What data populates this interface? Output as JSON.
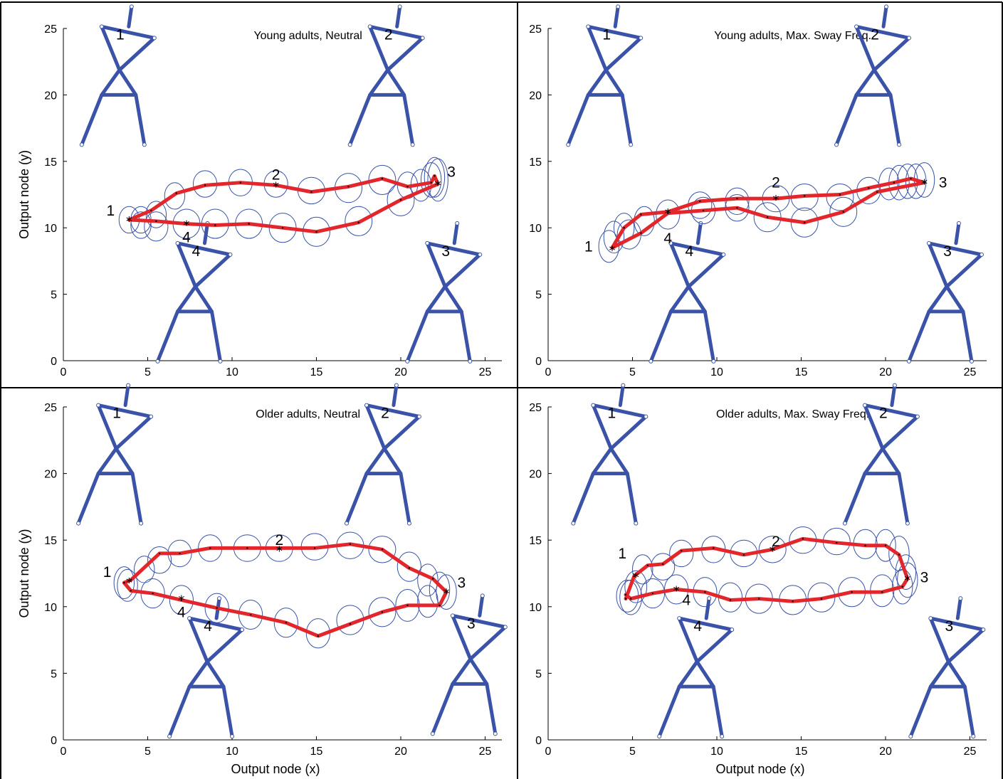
{
  "colors": {
    "trajectory": "#e3262b",
    "ellipse": "#3a52a8",
    "stick_figure": "#3a52a8"
  },
  "chart_data": [
    {
      "type": "line",
      "title": "Young adults, Neutral",
      "xlabel": "",
      "ylabel": "Output node (y)",
      "xlim": [
        0,
        26
      ],
      "ylim": [
        0,
        25
      ],
      "xticks": [
        "0",
        "5",
        "10",
        "15",
        "20",
        "25"
      ],
      "yticks": [
        "0",
        "5",
        "10",
        "15",
        "20",
        "25"
      ],
      "series": [
        {
          "x": [
            3.9,
            5.2,
            6.7,
            8.4,
            10.5,
            12.6,
            14.7,
            16.9,
            18.9,
            20.4,
            21.8,
            22.0,
            22.2,
            20.0,
            17.5,
            15.0,
            13.0,
            11.0,
            9.0,
            7.3,
            5.5,
            3.9
          ],
          "y": [
            10.6,
            11.3,
            12.6,
            13.2,
            13.4,
            13.2,
            12.7,
            13.1,
            13.7,
            13.1,
            13.4,
            13.9,
            13.3,
            12.1,
            10.4,
            9.7,
            10.0,
            10.3,
            10.2,
            10.3,
            10.5,
            10.6
          ]
        }
      ],
      "ellipses": [
        [
          3.9,
          10.6,
          1.2,
          2.0
        ],
        [
          4.6,
          10.6,
          1.2,
          2.0
        ],
        [
          5.5,
          11.0,
          1.2,
          2.0
        ],
        [
          6.6,
          12.4,
          1.2,
          2.0
        ],
        [
          8.4,
          13.3,
          1.4,
          2.0
        ],
        [
          10.5,
          13.4,
          1.4,
          2.0
        ],
        [
          12.6,
          13.3,
          1.4,
          2.0
        ],
        [
          14.7,
          12.8,
          1.6,
          2.0
        ],
        [
          16.9,
          13.0,
          1.6,
          2.2
        ],
        [
          18.9,
          13.6,
          1.6,
          2.2
        ],
        [
          20.4,
          13.2,
          1.2,
          2.0
        ],
        [
          21.2,
          13.2,
          1.2,
          2.4
        ],
        [
          21.8,
          13.6,
          1.2,
          2.6
        ],
        [
          22.0,
          13.8,
          1.2,
          3.0
        ],
        [
          22.2,
          13.6,
          1.2,
          3.2
        ],
        [
          4.6,
          10.2,
          1.2,
          2.0
        ],
        [
          5.5,
          10.1,
          1.4,
          2.2
        ],
        [
          7.3,
          10.3,
          1.6,
          2.2
        ],
        [
          9.0,
          10.3,
          1.6,
          2.2
        ],
        [
          11.0,
          10.3,
          1.6,
          2.2
        ],
        [
          13.0,
          10.0,
          1.6,
          2.2
        ],
        [
          15.0,
          9.7,
          1.6,
          2.2
        ],
        [
          17.5,
          10.5,
          1.6,
          2.2
        ],
        [
          20.0,
          12.1,
          1.6,
          2.4
        ]
      ],
      "markers": [
        [
          3.9,
          10.6
        ],
        [
          12.6,
          13.2
        ],
        [
          22.2,
          13.3
        ],
        [
          7.3,
          10.3
        ]
      ],
      "point_labels": [
        {
          "text": "1",
          "x": 2.8,
          "y": 11.3
        },
        {
          "text": "2",
          "x": 12.6,
          "y": 14.0
        },
        {
          "text": "3",
          "x": 23.0,
          "y": 14.2
        },
        {
          "text": "4",
          "x": 7.3,
          "y": 9.3
        }
      ],
      "figures": [
        {
          "label": "1",
          "x": 3.2,
          "y": 20.0
        },
        {
          "label": "2",
          "x": 19.1,
          "y": 20.0
        },
        {
          "label": "4",
          "x": 7.7,
          "y": 3.7
        },
        {
          "label": "3",
          "x": 22.5,
          "y": 3.7
        }
      ]
    },
    {
      "type": "line",
      "title": "Young adults, Max. Sway Freq.",
      "xlabel": "",
      "ylabel": "",
      "xlim": [
        0,
        26
      ],
      "ylim": [
        0,
        25
      ],
      "xticks": [
        "0",
        "5",
        "10",
        "15",
        "20",
        "25"
      ],
      "yticks": [
        "0",
        "5",
        "10",
        "15",
        "20",
        "25"
      ],
      "series": [
        {
          "x": [
            3.8,
            4.5,
            5.5,
            7.1,
            9.0,
            11.2,
            13.5,
            15.2,
            17.3,
            19.0,
            20.5,
            21.5,
            22.3,
            19.5,
            17.5,
            15.2,
            13.0,
            11.2,
            9.2,
            7.1,
            5.5,
            3.8
          ],
          "y": [
            8.5,
            10.0,
            11.0,
            11.2,
            12.0,
            12.2,
            12.2,
            12.4,
            12.5,
            13.0,
            13.4,
            13.7,
            13.4,
            12.7,
            11.2,
            10.4,
            10.8,
            11.5,
            11.3,
            11.1,
            9.6,
            8.5
          ]
        }
      ],
      "ellipses": [
        [
          3.6,
          8.6,
          1.2,
          2.4
        ],
        [
          3.9,
          9.3,
          1.2,
          2.4
        ],
        [
          4.5,
          10.0,
          1.2,
          2.2
        ],
        [
          5.7,
          10.5,
          1.2,
          2.2
        ],
        [
          7.1,
          11.0,
          1.4,
          2.2
        ],
        [
          9.0,
          11.7,
          1.4,
          2.0
        ],
        [
          11.2,
          12.0,
          1.4,
          2.0
        ],
        [
          13.5,
          12.2,
          1.6,
          2.0
        ],
        [
          15.2,
          12.3,
          1.6,
          2.0
        ],
        [
          17.3,
          12.3,
          1.6,
          2.0
        ],
        [
          19.0,
          12.8,
          1.4,
          2.0
        ],
        [
          20.2,
          13.3,
          1.2,
          2.4
        ],
        [
          20.8,
          13.4,
          1.2,
          2.6
        ],
        [
          21.3,
          13.5,
          1.2,
          2.6
        ],
        [
          21.8,
          13.5,
          1.2,
          2.6
        ],
        [
          22.3,
          13.6,
          1.2,
          2.6
        ],
        [
          9.2,
          11.3,
          1.4,
          2.0
        ],
        [
          11.2,
          11.5,
          1.4,
          2.0
        ],
        [
          13.0,
          10.8,
          1.6,
          2.2
        ],
        [
          15.2,
          10.4,
          1.6,
          2.2
        ],
        [
          17.5,
          11.2,
          1.6,
          2.2
        ],
        [
          4.8,
          9.5,
          1.4,
          2.2
        ]
      ],
      "markers": [
        [
          3.8,
          8.4
        ],
        [
          7.1,
          11.2
        ],
        [
          13.5,
          12.2
        ],
        [
          22.3,
          13.4
        ]
      ],
      "point_labels": [
        {
          "text": "1",
          "x": 2.4,
          "y": 8.6
        },
        {
          "text": "2",
          "x": 13.5,
          "y": 13.4
        },
        {
          "text": "3",
          "x": 23.4,
          "y": 13.4
        },
        {
          "text": "4",
          "x": 7.1,
          "y": 9.2
        }
      ],
      "figures": [
        {
          "label": "1",
          "x": 3.3,
          "y": 20.0
        },
        {
          "label": "2",
          "x": 19.2,
          "y": 20.0
        },
        {
          "label": "4",
          "x": 8.2,
          "y": 3.7
        },
        {
          "label": "3",
          "x": 23.5,
          "y": 3.7
        }
      ]
    },
    {
      "type": "line",
      "title": "Older adults, Neutral",
      "xlabel": "Output node (x)",
      "ylabel": "Output node (y)",
      "xlim": [
        0,
        26
      ],
      "ylim": [
        0,
        25
      ],
      "xticks": [
        "0",
        "5",
        "10",
        "15",
        "20",
        "25"
      ],
      "yticks": [
        "0",
        "5",
        "10",
        "15",
        "20",
        "25"
      ],
      "series": [
        {
          "x": [
            3.6,
            4.0,
            5.7,
            6.9,
            8.7,
            10.9,
            12.8,
            14.9,
            17.0,
            18.9,
            20.5,
            21.9,
            22.7,
            22.3,
            20.4,
            18.9,
            17.0,
            15.1,
            13.2,
            11.1,
            9.1,
            7.0,
            5.3,
            4.0,
            3.6
          ],
          "y": [
            11.8,
            12.0,
            14.0,
            14.0,
            14.4,
            14.4,
            14.4,
            14.4,
            14.7,
            14.3,
            12.9,
            12.1,
            11.1,
            10.1,
            10.1,
            9.6,
            8.7,
            7.8,
            8.8,
            9.4,
            9.9,
            10.5,
            11.0,
            11.2,
            11.8
          ]
        }
      ],
      "ellipses": [
        [
          3.6,
          11.8,
          1.2,
          2.4
        ],
        [
          3.8,
          11.6,
          1.2,
          2.4
        ],
        [
          4.8,
          12.8,
          1.2,
          2.0
        ],
        [
          5.7,
          13.5,
          1.4,
          2.0
        ],
        [
          6.9,
          14.0,
          1.4,
          2.0
        ],
        [
          8.7,
          14.4,
          1.4,
          2.0
        ],
        [
          10.9,
          14.4,
          1.6,
          2.0
        ],
        [
          12.8,
          14.4,
          1.6,
          2.0
        ],
        [
          14.9,
          14.5,
          1.6,
          2.0
        ],
        [
          17.0,
          14.6,
          1.6,
          2.0
        ],
        [
          18.9,
          14.3,
          1.6,
          2.0
        ],
        [
          20.5,
          13.0,
          1.4,
          2.2
        ],
        [
          21.6,
          12.0,
          1.2,
          2.4
        ],
        [
          22.3,
          11.3,
          1.2,
          2.6
        ],
        [
          22.7,
          11.1,
          1.2,
          2.6
        ],
        [
          21.6,
          10.4,
          1.2,
          2.4
        ],
        [
          20.4,
          10.1,
          1.4,
          2.4
        ],
        [
          18.9,
          9.6,
          1.6,
          2.2
        ],
        [
          17.0,
          9.0,
          1.6,
          2.2
        ],
        [
          15.1,
          8.0,
          1.4,
          2.2
        ],
        [
          13.2,
          8.8,
          1.4,
          2.2
        ],
        [
          11.1,
          9.4,
          1.4,
          2.2
        ],
        [
          9.1,
          9.9,
          1.4,
          2.2
        ],
        [
          7.0,
          10.5,
          1.4,
          2.2
        ],
        [
          5.3,
          11.0,
          1.4,
          2.2
        ]
      ],
      "markers": [
        [
          3.9,
          11.9
        ],
        [
          12.8,
          14.3
        ],
        [
          22.7,
          11.1
        ],
        [
          7.0,
          10.6
        ]
      ],
      "point_labels": [
        {
          "text": "1",
          "x": 2.6,
          "y": 12.6
        },
        {
          "text": "2",
          "x": 12.8,
          "y": 15.0
        },
        {
          "text": "3",
          "x": 23.6,
          "y": 11.8
        },
        {
          "text": "4",
          "x": 7.0,
          "y": 9.6
        }
      ],
      "figures": [
        {
          "label": "1",
          "x": 3.0,
          "y": 20.0
        },
        {
          "label": "2",
          "x": 18.9,
          "y": 20.0
        },
        {
          "label": "4",
          "x": 8.4,
          "y": 4.0
        },
        {
          "label": "3",
          "x": 24.0,
          "y": 4.2
        }
      ]
    },
    {
      "type": "line",
      "title": "Older adults, Max. Sway Freq.",
      "xlabel": "Output node (x)",
      "ylabel": "",
      "xlim": [
        0,
        26
      ],
      "ylim": [
        0,
        25
      ],
      "xticks": [
        "0",
        "5",
        "10",
        "15",
        "20",
        "25"
      ],
      "yticks": [
        "0",
        "5",
        "10",
        "15",
        "20",
        "25"
      ],
      "series": [
        {
          "x": [
            4.6,
            5.1,
            5.9,
            6.8,
            7.9,
            9.8,
            11.6,
            13.3,
            15.1,
            17.1,
            18.8,
            20.0,
            20.8,
            21.3,
            21.0,
            19.8,
            18.0,
            16.2,
            14.5,
            12.5,
            10.8,
            9.3,
            7.6,
            6.2,
            4.9,
            4.6
          ],
          "y": [
            10.6,
            12.3,
            13.1,
            13.2,
            14.2,
            14.4,
            13.9,
            14.3,
            15.1,
            14.8,
            14.6,
            14.6,
            13.9,
            12.1,
            11.5,
            11.1,
            11.1,
            10.6,
            10.4,
            10.6,
            10.5,
            11.1,
            11.3,
            11.0,
            10.6,
            10.9
          ]
        }
      ],
      "ellipses": [
        [
          4.7,
          10.8,
          1.3,
          2.4
        ],
        [
          4.9,
          10.7,
          1.3,
          2.6
        ],
        [
          5.2,
          11.5,
          1.3,
          2.4
        ],
        [
          5.6,
          12.8,
          1.2,
          2.2
        ],
        [
          6.8,
          13.0,
          1.4,
          2.0
        ],
        [
          7.9,
          14.0,
          1.4,
          2.0
        ],
        [
          9.8,
          14.3,
          1.4,
          2.0
        ],
        [
          11.6,
          14.0,
          1.6,
          2.0
        ],
        [
          13.3,
          14.3,
          1.6,
          2.0
        ],
        [
          15.1,
          15.0,
          1.6,
          2.0
        ],
        [
          17.1,
          14.9,
          1.6,
          2.0
        ],
        [
          18.8,
          14.7,
          1.4,
          2.2
        ],
        [
          20.0,
          14.6,
          1.2,
          2.4
        ],
        [
          20.8,
          14.0,
          1.2,
          2.6
        ],
        [
          21.2,
          12.6,
          1.2,
          2.6
        ],
        [
          21.3,
          12.0,
          1.2,
          2.6
        ],
        [
          21.0,
          11.5,
          1.2,
          2.6
        ],
        [
          19.8,
          11.2,
          1.4,
          2.4
        ],
        [
          18.0,
          11.1,
          1.6,
          2.2
        ],
        [
          16.2,
          10.7,
          1.6,
          2.2
        ],
        [
          14.5,
          10.5,
          1.6,
          2.2
        ],
        [
          12.5,
          10.6,
          1.6,
          2.2
        ],
        [
          10.8,
          10.7,
          1.4,
          2.2
        ],
        [
          9.3,
          11.1,
          1.4,
          2.2
        ],
        [
          7.6,
          11.3,
          1.4,
          2.2
        ],
        [
          6.2,
          11.0,
          1.4,
          2.2
        ]
      ],
      "markers": [
        [
          5.2,
          12.3
        ],
        [
          13.3,
          14.3
        ],
        [
          21.3,
          12.1
        ],
        [
          7.6,
          11.3
        ]
      ],
      "point_labels": [
        {
          "text": "1",
          "x": 4.4,
          "y": 14.0
        },
        {
          "text": "2",
          "x": 13.5,
          "y": 14.9
        },
        {
          "text": "3",
          "x": 22.3,
          "y": 12.2
        },
        {
          "text": "4",
          "x": 8.2,
          "y": 10.5
        }
      ],
      "figures": [
        {
          "label": "1",
          "x": 3.6,
          "y": 20.0
        },
        {
          "label": "2",
          "x": 19.7,
          "y": 20.0
        },
        {
          "label": "4",
          "x": 8.7,
          "y": 4.0
        },
        {
          "label": "3",
          "x": 23.6,
          "y": 4.0
        }
      ]
    }
  ]
}
